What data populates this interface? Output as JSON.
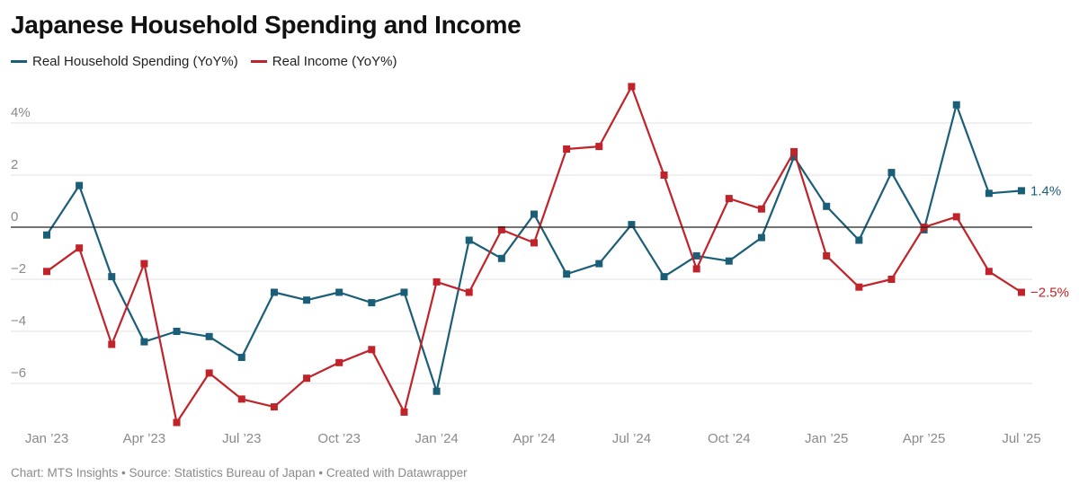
{
  "title": "Japanese Household Spending and Income",
  "footer": "Chart: MTS Insights • Source: Statistics Bureau of Japan • Created with Datawrapper",
  "chart_data": {
    "type": "line",
    "title": "Japanese Household Spending and Income",
    "x": [
      "Jan 2023",
      "Feb 2023",
      "Mar 2023",
      "Apr 2023",
      "May 2023",
      "Jun 2023",
      "Jul 2023",
      "Aug 2023",
      "Sep 2023",
      "Oct 2023",
      "Nov 2023",
      "Dec 2023",
      "Jan 2024",
      "Feb 2024",
      "Mar 2024",
      "Apr 2024",
      "May 2024",
      "Jun 2024",
      "Jul 2024",
      "Aug 2024",
      "Sep 2024",
      "Oct 2024",
      "Nov 2024",
      "Dec 2024",
      "Jan 2025",
      "Feb 2025",
      "Mar 2025",
      "Apr 2025",
      "May 2025",
      "Jun 2025",
      "Jul 2025"
    ],
    "x_tick_labels": [
      "Jan ’23",
      "Apr ’23",
      "Jul ’23",
      "Oct ’23",
      "Jan ’24",
      "Apr ’24",
      "Jul ’24",
      "Oct ’24",
      "Jan ’25",
      "Apr ’25",
      "Jul ’25"
    ],
    "x_tick_indices": [
      0,
      3,
      6,
      9,
      12,
      15,
      18,
      21,
      24,
      27,
      30
    ],
    "y_ticks": [
      4,
      2,
      0,
      -2,
      -4,
      -6
    ],
    "y_tick_labels": [
      "4%",
      "2",
      "0",
      "−2",
      "−4",
      "−6"
    ],
    "ylim": [
      -7.8,
      5.6
    ],
    "grid": true,
    "legend_position": "top-left",
    "series": [
      {
        "name": "Real Household Spending (YoY%)",
        "color": "#1b5e78",
        "end_label": "1.4%",
        "values": [
          -0.3,
          1.6,
          -1.9,
          -4.4,
          -4.0,
          -4.2,
          -5.0,
          -2.5,
          -2.8,
          -2.5,
          -2.9,
          -2.5,
          -6.3,
          -0.5,
          -1.2,
          0.5,
          -1.8,
          -1.4,
          0.1,
          -1.9,
          -1.1,
          -1.3,
          -0.4,
          2.7,
          0.8,
          -0.5,
          2.1,
          -0.1,
          4.7,
          1.3,
          1.4
        ]
      },
      {
        "name": "Real Income (YoY%)",
        "color": "#c0232a",
        "end_label": "−2.5%",
        "values": [
          -1.7,
          -0.8,
          -4.5,
          -1.4,
          -7.5,
          -5.6,
          -6.6,
          -6.9,
          -5.8,
          -5.2,
          -4.7,
          -7.1,
          -2.1,
          -2.5,
          -0.1,
          -0.6,
          3.0,
          3.1,
          5.4,
          2.0,
          -1.6,
          1.1,
          0.7,
          2.9,
          -1.1,
          -2.3,
          -2.0,
          0.0,
          0.4,
          -1.7,
          -2.5
        ]
      }
    ]
  }
}
